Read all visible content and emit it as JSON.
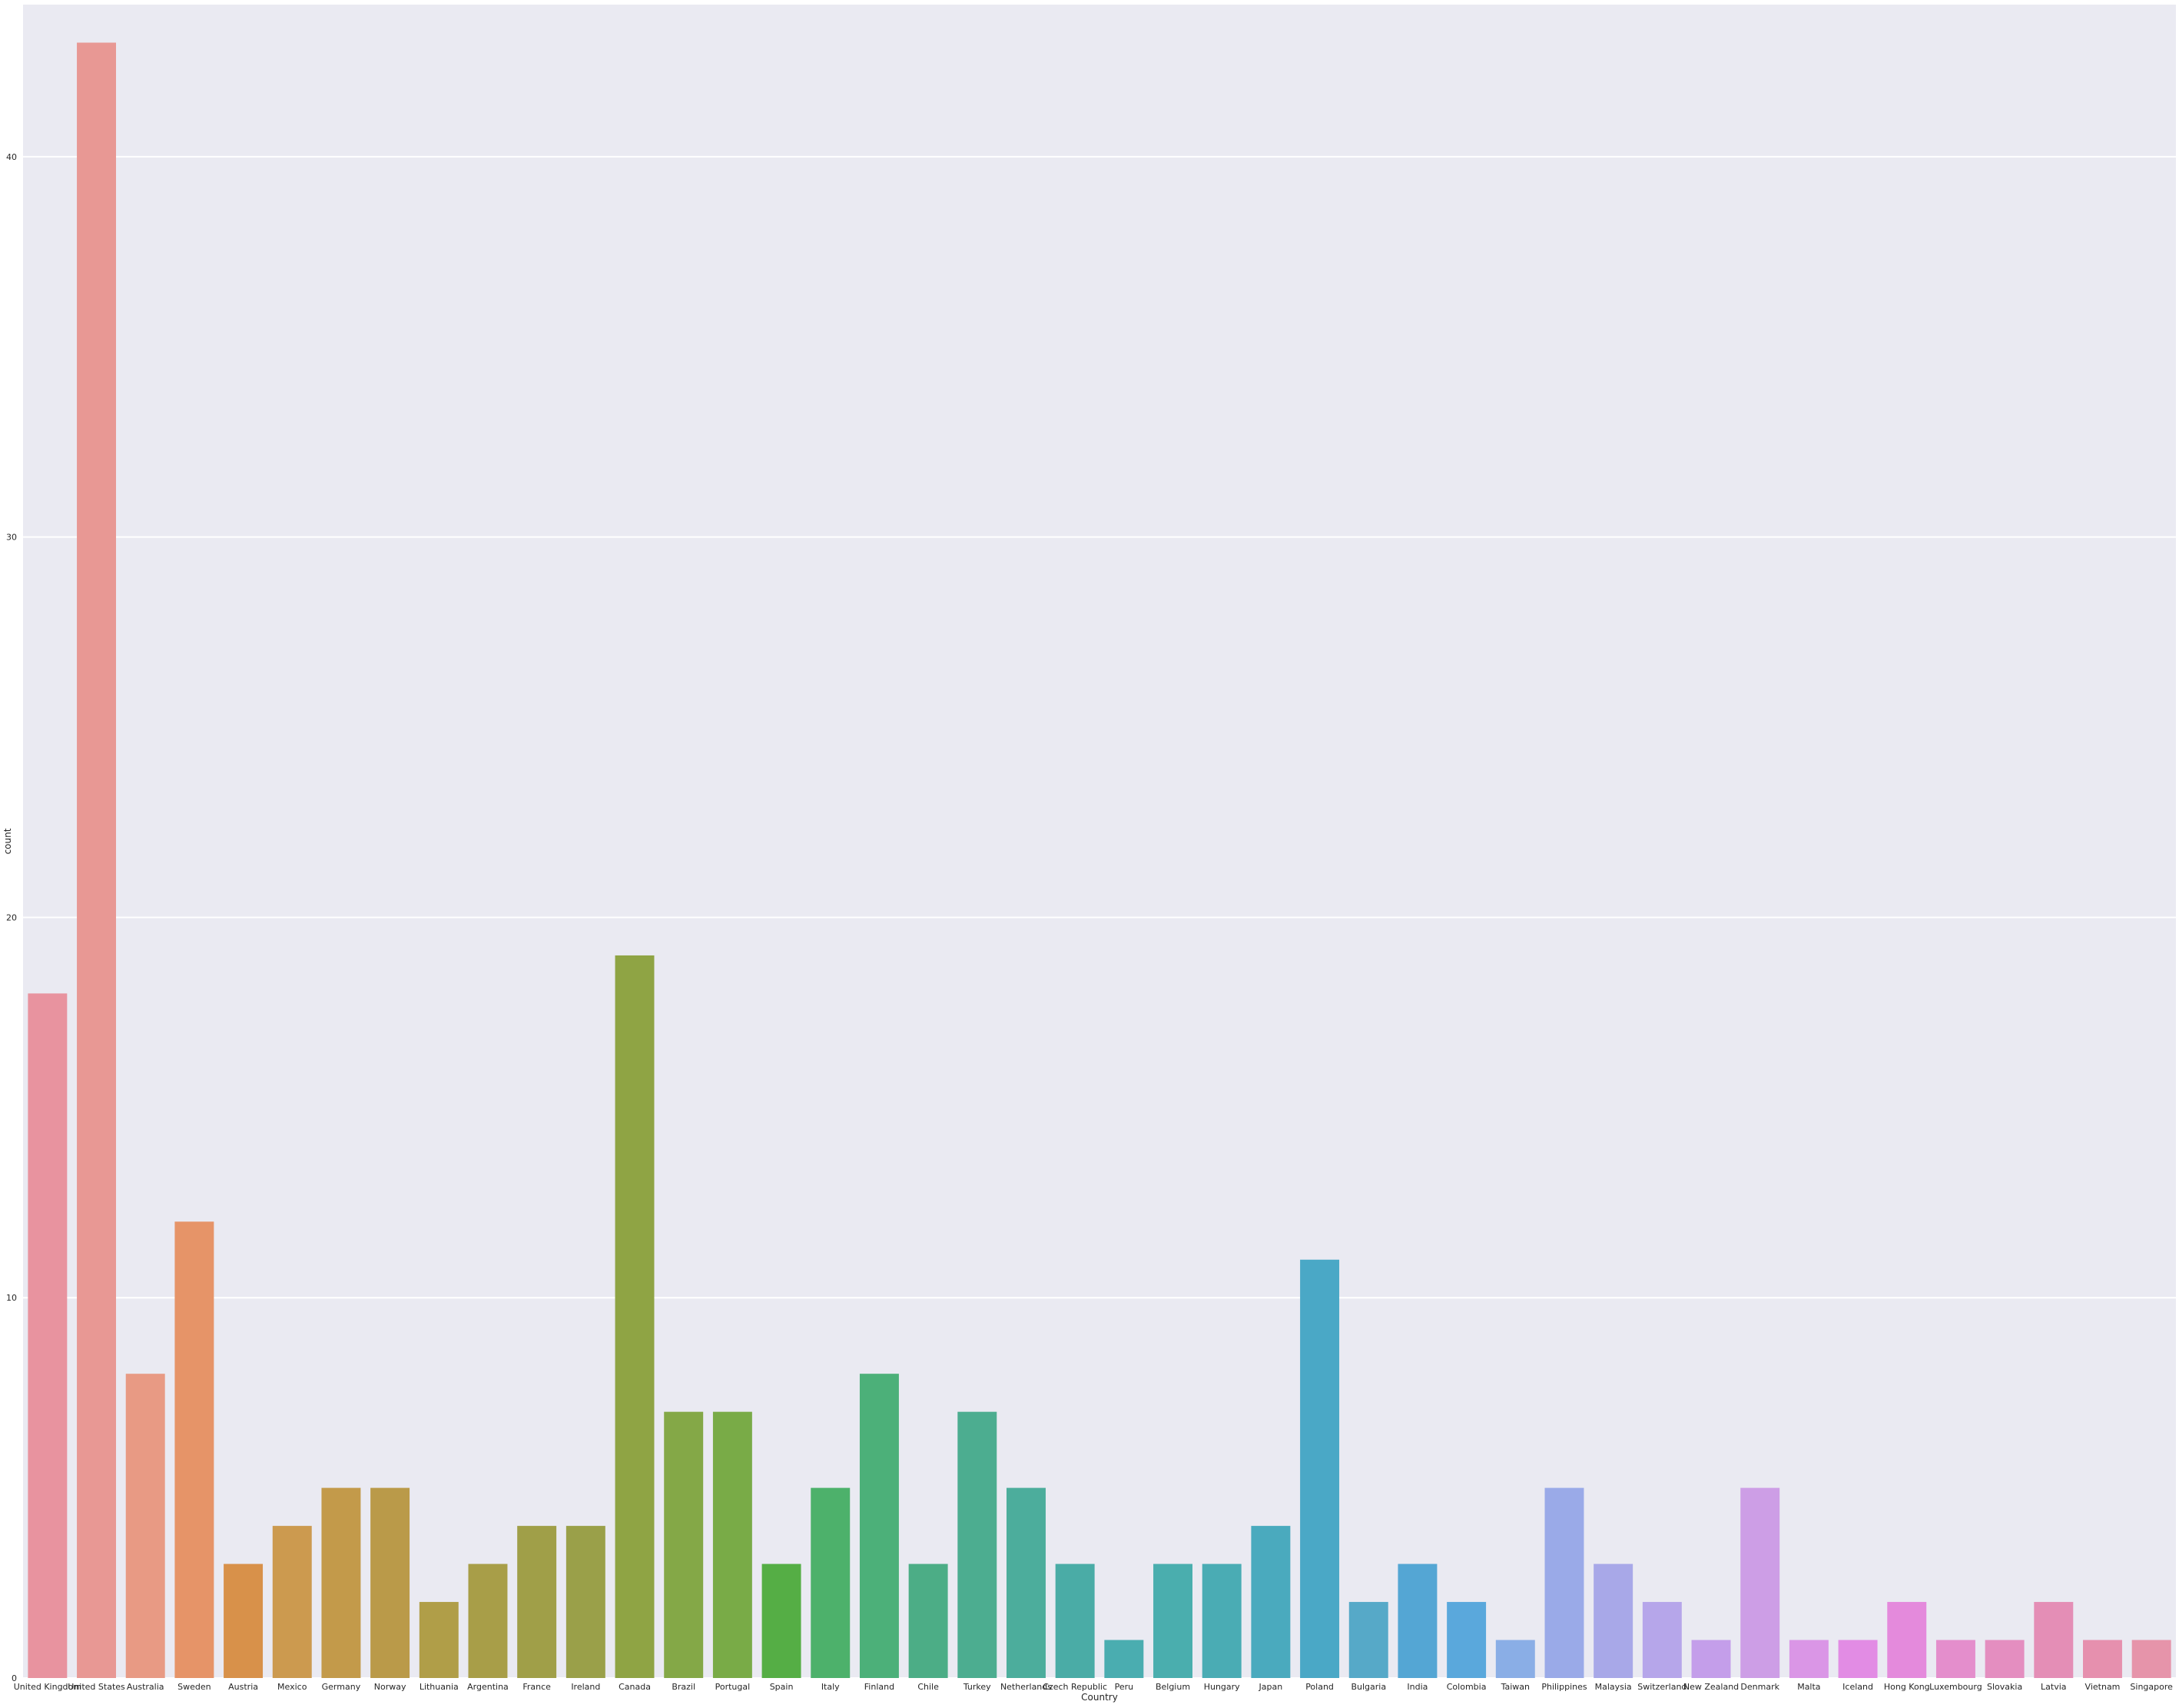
{
  "chart_data": {
    "type": "bar",
    "title": "",
    "xlabel": "Country",
    "ylabel": "count",
    "ylim": [
      0,
      44
    ],
    "yticks": [
      0,
      10,
      20,
      30,
      40
    ],
    "grid": true,
    "background_color": "#eaeaf2",
    "grid_color": "#ffffff",
    "categories": [
      "United Kingdom",
      "United States",
      "Australia",
      "Sweden",
      "Austria",
      "Mexico",
      "Germany",
      "Norway",
      "Lithuania",
      "Argentina",
      "France",
      "Ireland",
      "Canada",
      "Brazil",
      "Portugal",
      "Spain",
      "Italy",
      "Finland",
      "Chile",
      "Turkey",
      "Netherlands",
      "Czech Republic",
      "Peru",
      "Belgium",
      "Hungary",
      "Japan",
      "Poland",
      "Bulgaria",
      "India",
      "Colombia",
      "Taiwan",
      "Philippines",
      "Malaysia",
      "Switzerland",
      "New Zealand",
      "Denmark",
      "Malta",
      "Iceland",
      "Hong Kong",
      "Luxembourg",
      "Slovakia",
      "Latvia",
      "Vietnam",
      "Singapore"
    ],
    "values": [
      18,
      43,
      8,
      12,
      3,
      4,
      5,
      5,
      2,
      3,
      4,
      4,
      19,
      7,
      7,
      3,
      5,
      8,
      3,
      7,
      5,
      3,
      1,
      3,
      3,
      4,
      11,
      2,
      3,
      2,
      1,
      5,
      3,
      2,
      1,
      5,
      1,
      1,
      2,
      1,
      1,
      2,
      1,
      1
    ],
    "colors": [
      "#e8939f",
      "#e89894",
      "#e89a84",
      "#e69468",
      "#d8914a",
      "#cc9a4f",
      "#c39a4a",
      "#ba9a49",
      "#b09e48",
      "#a89e48",
      "#a09f48",
      "#9aa049",
      "#8fa444",
      "#84a847",
      "#79ab47",
      "#55ae45",
      "#4db16b",
      "#4cb079",
      "#4cad86",
      "#4cad90",
      "#4cad9c",
      "#4aaca6",
      "#4aadb0",
      "#4aaeae",
      "#4aacb4",
      "#4aaabe",
      "#4aa8c6",
      "#56a9c8",
      "#54a6d4",
      "#5aa8dc",
      "#8aaee6",
      "#9aaae8",
      "#a8a8e8",
      "#b6a6ea",
      "#c49eea",
      "#cd9ee6",
      "#da96e6",
      "#e28ce4",
      "#e48adc",
      "#e48ecc",
      "#e48ec0",
      "#e48eb6",
      "#e690ae",
      "#e694aa"
    ]
  }
}
